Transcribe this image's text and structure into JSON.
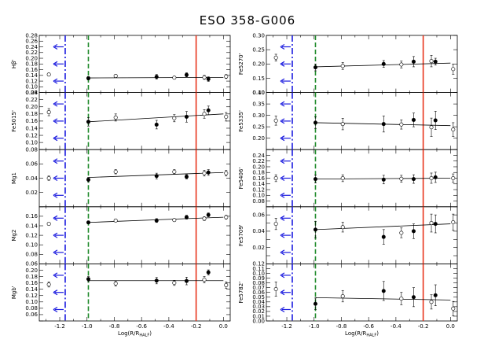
{
  "title": "ESO 358-G006",
  "colors": {
    "red": "#e8341c",
    "green": "#1f8a2a",
    "blue": "#1a1adf",
    "black": "#000000"
  },
  "x_axis": {
    "label": "Log(R/R",
    "label_sub": "HALF",
    "label_close": ")",
    "xlim": [
      -1.35,
      0.05
    ],
    "ticks": [
      -1.2,
      -1.0,
      -0.8,
      -0.6,
      -0.4,
      -0.2,
      0.0
    ],
    "tick_labels": [
      "-1.2",
      "-1.0",
      "-0.8",
      "-0.6",
      "-0.4",
      "-0.2",
      "0.0"
    ]
  },
  "lines": {
    "blue_dashdot_x": -1.16,
    "green_dashed_x": -0.99,
    "red_solid_x": -0.2
  },
  "chart_data": [
    {
      "type": "scatter",
      "panel": "left-1",
      "ylabel": "Hβ'",
      "ylim": [
        0.08,
        0.28
      ],
      "yticks": [
        0.08,
        0.1,
        0.12,
        0.14,
        0.16,
        0.18,
        0.2,
        0.22,
        0.24,
        0.26,
        0.28
      ],
      "ytick_labels": [
        "0.08",
        "0.10",
        "0.12",
        "0.14",
        "0.16",
        "0.18",
        "0.20",
        "0.22",
        "0.24",
        "0.26",
        "0.28"
      ],
      "fit": [
        [
          -0.99,
          0.131
        ],
        [
          0.0,
          0.133
        ]
      ],
      "points": [
        {
          "x": -1.28,
          "y": 0.143,
          "err": 0.005,
          "filled": false
        },
        {
          "x": -0.99,
          "y": 0.13,
          "err": 0.006,
          "filled": true
        },
        {
          "x": -0.79,
          "y": 0.138,
          "err": 0.005,
          "filled": false
        },
        {
          "x": -0.49,
          "y": 0.135,
          "err": 0.008,
          "filled": true
        },
        {
          "x": -0.36,
          "y": 0.132,
          "err": 0.005,
          "filled": false
        },
        {
          "x": -0.27,
          "y": 0.142,
          "err": 0.007,
          "filled": true
        },
        {
          "x": -0.14,
          "y": 0.133,
          "err": 0.007,
          "filled": false
        },
        {
          "x": -0.11,
          "y": 0.127,
          "err": 0.008,
          "filled": true
        },
        {
          "x": 0.02,
          "y": 0.136,
          "err": 0.007,
          "filled": false
        }
      ]
    },
    {
      "type": "scatter",
      "panel": "left-2",
      "ylabel": "Fe5015'",
      "ylim": [
        0.08,
        0.24
      ],
      "yticks": [
        0.08,
        0.1,
        0.12,
        0.14,
        0.16,
        0.18,
        0.2,
        0.22,
        0.24
      ],
      "ytick_labels": [
        "0.08",
        "0.10",
        "0.12",
        "0.14",
        "0.16",
        "0.18",
        "0.20",
        "0.22",
        "0.24"
      ],
      "fit": [
        [
          -0.99,
          0.158
        ],
        [
          0.0,
          0.18
        ]
      ],
      "points": [
        {
          "x": -1.28,
          "y": 0.185,
          "err": 0.01,
          "filled": false
        },
        {
          "x": -0.99,
          "y": 0.158,
          "err": 0.012,
          "filled": true
        },
        {
          "x": -0.79,
          "y": 0.17,
          "err": 0.01,
          "filled": false
        },
        {
          "x": -0.49,
          "y": 0.15,
          "err": 0.012,
          "filled": true
        },
        {
          "x": -0.36,
          "y": 0.168,
          "err": 0.01,
          "filled": false
        },
        {
          "x": -0.27,
          "y": 0.172,
          "err": 0.015,
          "filled": true
        },
        {
          "x": -0.14,
          "y": 0.18,
          "err": 0.012,
          "filled": false
        },
        {
          "x": -0.11,
          "y": 0.19,
          "err": 0.012,
          "filled": true
        },
        {
          "x": 0.02,
          "y": 0.172,
          "err": 0.012,
          "filled": false
        }
      ]
    },
    {
      "type": "scatter",
      "panel": "left-3",
      "ylabel": "Mg1",
      "ylim": [
        0.0,
        0.08
      ],
      "yticks": [
        0.0,
        0.02,
        0.04,
        0.06,
        0.08
      ],
      "ytick_labels": [
        "",
        "0.02",
        "0.04",
        "0.06",
        ""
      ],
      "fit": [
        [
          -0.99,
          0.041
        ],
        [
          0.0,
          0.048
        ]
      ],
      "points": [
        {
          "x": -1.28,
          "y": 0.04,
          "err": 0.003,
          "filled": false
        },
        {
          "x": -0.99,
          "y": 0.038,
          "err": 0.003,
          "filled": true
        },
        {
          "x": -0.79,
          "y": 0.049,
          "err": 0.003,
          "filled": false
        },
        {
          "x": -0.49,
          "y": 0.043,
          "err": 0.004,
          "filled": true
        },
        {
          "x": -0.36,
          "y": 0.049,
          "err": 0.003,
          "filled": false
        },
        {
          "x": -0.27,
          "y": 0.042,
          "err": 0.003,
          "filled": true
        },
        {
          "x": -0.14,
          "y": 0.047,
          "err": 0.004,
          "filled": false
        },
        {
          "x": -0.11,
          "y": 0.048,
          "err": 0.004,
          "filled": true
        },
        {
          "x": 0.02,
          "y": 0.047,
          "err": 0.004,
          "filled": false
        }
      ]
    },
    {
      "type": "scatter",
      "panel": "left-4",
      "ylabel": "Mg2",
      "ylim": [
        0.06,
        0.18
      ],
      "yticks": [
        0.06,
        0.08,
        0.1,
        0.12,
        0.14,
        0.16,
        0.18
      ],
      "ytick_labels": [
        "0.06",
        "0.08",
        "0.10",
        "0.12",
        "0.14",
        "0.16",
        ""
      ],
      "fit": [
        [
          -0.99,
          0.147
        ],
        [
          0.0,
          0.158
        ]
      ],
      "points": [
        {
          "x": -1.28,
          "y": 0.144,
          "err": 0.003,
          "filled": false
        },
        {
          "x": -0.99,
          "y": 0.147,
          "err": 0.003,
          "filled": true
        },
        {
          "x": -0.79,
          "y": 0.151,
          "err": 0.003,
          "filled": false
        },
        {
          "x": -0.49,
          "y": 0.151,
          "err": 0.004,
          "filled": true
        },
        {
          "x": -0.36,
          "y": 0.152,
          "err": 0.003,
          "filled": false
        },
        {
          "x": -0.27,
          "y": 0.158,
          "err": 0.004,
          "filled": true
        },
        {
          "x": -0.14,
          "y": 0.155,
          "err": 0.004,
          "filled": false
        },
        {
          "x": -0.11,
          "y": 0.163,
          "err": 0.004,
          "filled": true
        },
        {
          "x": 0.02,
          "y": 0.158,
          "err": 0.004,
          "filled": false
        }
      ]
    },
    {
      "type": "scatter",
      "panel": "left-5",
      "ylabel": "Mgb'",
      "ylim": [
        0.04,
        0.22
      ],
      "yticks": [
        0.04,
        0.06,
        0.08,
        0.1,
        0.12,
        0.14,
        0.16,
        0.18,
        0.2,
        0.22
      ],
      "ytick_labels": [
        "",
        "0.06",
        "0.08",
        "0.10",
        "0.12",
        "0.14",
        "0.16",
        "0.18",
        "0.20",
        ""
      ],
      "fit": [
        [
          -0.99,
          0.167
        ],
        [
          0.0,
          0.167
        ]
      ],
      "points": [
        {
          "x": -1.28,
          "y": 0.155,
          "err": 0.008,
          "filled": false
        },
        {
          "x": -0.99,
          "y": 0.172,
          "err": 0.008,
          "filled": true
        },
        {
          "x": -0.79,
          "y": 0.158,
          "err": 0.008,
          "filled": false
        },
        {
          "x": -0.49,
          "y": 0.167,
          "err": 0.01,
          "filled": true
        },
        {
          "x": -0.36,
          "y": 0.16,
          "err": 0.008,
          "filled": false
        },
        {
          "x": -0.27,
          "y": 0.166,
          "err": 0.012,
          "filled": true
        },
        {
          "x": -0.14,
          "y": 0.17,
          "err": 0.01,
          "filled": false
        },
        {
          "x": -0.11,
          "y": 0.193,
          "err": 0.008,
          "filled": true
        },
        {
          "x": 0.02,
          "y": 0.153,
          "err": 0.01,
          "filled": false
        }
      ]
    },
    {
      "type": "scatter",
      "panel": "right-1",
      "ylabel": "Fe5270'",
      "ylim": [
        0.1,
        0.3
      ],
      "yticks": [
        0.1,
        0.15,
        0.2,
        0.25,
        0.3
      ],
      "ytick_labels": [
        "0.10",
        "0.15",
        "0.20",
        "0.25",
        "0.30"
      ],
      "fit": [
        [
          -0.99,
          0.19
        ],
        [
          0.0,
          0.203
        ]
      ],
      "points": [
        {
          "x": -1.28,
          "y": 0.222,
          "err": 0.012,
          "filled": false
        },
        {
          "x": -0.99,
          "y": 0.188,
          "err": 0.012,
          "filled": true
        },
        {
          "x": -0.79,
          "y": 0.193,
          "err": 0.012,
          "filled": false
        },
        {
          "x": -0.49,
          "y": 0.2,
          "err": 0.012,
          "filled": true
        },
        {
          "x": -0.36,
          "y": 0.198,
          "err": 0.012,
          "filled": false
        },
        {
          "x": -0.27,
          "y": 0.208,
          "err": 0.018,
          "filled": true
        },
        {
          "x": -0.14,
          "y": 0.21,
          "err": 0.02,
          "filled": false
        },
        {
          "x": -0.11,
          "y": 0.208,
          "err": 0.012,
          "filled": true
        },
        {
          "x": 0.02,
          "y": 0.182,
          "err": 0.018,
          "filled": false
        }
      ]
    },
    {
      "type": "scatter",
      "panel": "right-2",
      "ylabel": "Fe5335'",
      "ylim": [
        0.15,
        0.4
      ],
      "yticks": [
        0.15,
        0.2,
        0.25,
        0.3,
        0.35,
        0.4
      ],
      "ytick_labels": [
        "",
        "0.20",
        "0.25",
        "0.30",
        "0.35",
        "0.40"
      ],
      "fit": [
        [
          -0.99,
          0.268
        ],
        [
          0.0,
          0.255
        ]
      ],
      "points": [
        {
          "x": -1.28,
          "y": 0.277,
          "err": 0.02,
          "filled": false
        },
        {
          "x": -0.99,
          "y": 0.268,
          "err": 0.025,
          "filled": true
        },
        {
          "x": -0.79,
          "y": 0.262,
          "err": 0.025,
          "filled": false
        },
        {
          "x": -0.49,
          "y": 0.262,
          "err": 0.035,
          "filled": true
        },
        {
          "x": -0.36,
          "y": 0.26,
          "err": 0.02,
          "filled": false
        },
        {
          "x": -0.27,
          "y": 0.28,
          "err": 0.03,
          "filled": true
        },
        {
          "x": -0.14,
          "y": 0.248,
          "err": 0.04,
          "filled": false
        },
        {
          "x": -0.11,
          "y": 0.278,
          "err": 0.04,
          "filled": true
        },
        {
          "x": 0.02,
          "y": 0.238,
          "err": 0.03,
          "filled": false
        }
      ]
    },
    {
      "type": "scatter",
      "panel": "right-3",
      "ylabel": "Fe5406'",
      "ylim": [
        0.06,
        0.26
      ],
      "yticks": [
        0.06,
        0.08,
        0.1,
        0.12,
        0.14,
        0.16,
        0.18,
        0.2,
        0.22,
        0.24,
        0.26
      ],
      "ytick_labels": [
        "",
        "0.08",
        "0.10",
        "0.12",
        "0.14",
        "0.16",
        "0.18",
        "0.20",
        "0.22",
        "0.24",
        ""
      ],
      "fit": [
        [
          -0.99,
          0.157
        ],
        [
          0.0,
          0.16
        ]
      ],
      "points": [
        {
          "x": -1.28,
          "y": 0.16,
          "err": 0.012,
          "filled": false
        },
        {
          "x": -0.99,
          "y": 0.157,
          "err": 0.014,
          "filled": true
        },
        {
          "x": -0.79,
          "y": 0.16,
          "err": 0.012,
          "filled": false
        },
        {
          "x": -0.49,
          "y": 0.155,
          "err": 0.015,
          "filled": true
        },
        {
          "x": -0.36,
          "y": 0.158,
          "err": 0.012,
          "filled": false
        },
        {
          "x": -0.27,
          "y": 0.157,
          "err": 0.015,
          "filled": true
        },
        {
          "x": -0.14,
          "y": 0.16,
          "err": 0.018,
          "filled": false
        },
        {
          "x": -0.11,
          "y": 0.163,
          "err": 0.018,
          "filled": true
        },
        {
          "x": 0.02,
          "y": 0.16,
          "err": 0.015,
          "filled": false
        }
      ]
    },
    {
      "type": "scatter",
      "panel": "right-4",
      "ylabel": "Fe5709'",
      "ylim": [
        0.0,
        0.07
      ],
      "yticks": [
        0.0,
        0.01,
        0.02,
        0.03,
        0.04,
        0.05,
        0.06,
        0.07
      ],
      "ytick_labels": [
        "",
        "",
        "0.02",
        "",
        "0.04",
        "",
        "0.06",
        ""
      ],
      "fit": [
        [
          -0.99,
          0.042
        ],
        [
          0.0,
          0.049
        ]
      ],
      "points": [
        {
          "x": -1.28,
          "y": 0.049,
          "err": 0.007,
          "filled": false
        },
        {
          "x": -0.99,
          "y": 0.042,
          "err": 0.01,
          "filled": true
        },
        {
          "x": -0.79,
          "y": 0.045,
          "err": 0.006,
          "filled": false
        },
        {
          "x": -0.49,
          "y": 0.033,
          "err": 0.009,
          "filled": true
        },
        {
          "x": -0.36,
          "y": 0.038,
          "err": 0.006,
          "filled": false
        },
        {
          "x": -0.27,
          "y": 0.04,
          "err": 0.009,
          "filled": true
        },
        {
          "x": -0.14,
          "y": 0.05,
          "err": 0.011,
          "filled": false
        },
        {
          "x": -0.11,
          "y": 0.049,
          "err": 0.011,
          "filled": true
        },
        {
          "x": 0.02,
          "y": 0.051,
          "err": 0.01,
          "filled": false
        }
      ]
    },
    {
      "type": "scatter",
      "panel": "right-5",
      "ylabel": "Fe5782'",
      "ylim": [
        0.0,
        0.12
      ],
      "yticks": [
        0.0,
        0.01,
        0.02,
        0.03,
        0.04,
        0.05,
        0.06,
        0.07,
        0.08,
        0.09,
        0.1,
        0.11,
        0.12
      ],
      "ytick_labels": [
        "0.00",
        "0.01",
        "0.02",
        "0.03",
        "0.04",
        "0.05",
        "0.06",
        "0.07",
        "0.08",
        "0.09",
        "0.10",
        "0.11",
        "0.12"
      ],
      "fit": [
        [
          -0.99,
          0.049
        ],
        [
          0.0,
          0.044
        ]
      ],
      "points": [
        {
          "x": -1.28,
          "y": 0.067,
          "err": 0.015,
          "filled": false
        },
        {
          "x": -0.99,
          "y": 0.036,
          "err": 0.012,
          "filled": true
        },
        {
          "x": -0.79,
          "y": 0.052,
          "err": 0.012,
          "filled": false
        },
        {
          "x": -0.49,
          "y": 0.063,
          "err": 0.02,
          "filled": true
        },
        {
          "x": -0.36,
          "y": 0.047,
          "err": 0.013,
          "filled": false
        },
        {
          "x": -0.27,
          "y": 0.05,
          "err": 0.02,
          "filled": true
        },
        {
          "x": -0.14,
          "y": 0.04,
          "err": 0.015,
          "filled": false
        },
        {
          "x": -0.11,
          "y": 0.054,
          "err": 0.022,
          "filled": true
        },
        {
          "x": 0.02,
          "y": 0.026,
          "err": 0.015,
          "filled": false
        }
      ]
    }
  ]
}
